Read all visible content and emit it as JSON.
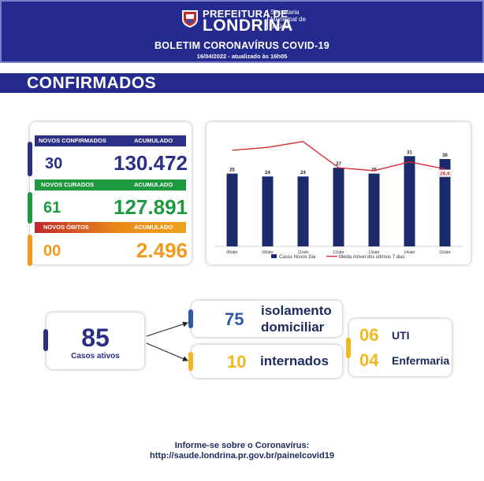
{
  "header": {
    "logo_line1": "PREFEITURA DE",
    "logo_line2": "LONDRINA",
    "logo_secretaria": "Secretaria Municipal de Saúde",
    "bulletin_title": "BOLETIM CORONAVÍRUS COVID-19",
    "bulletin_date": "16/04/2022 - atualizado às 16h05"
  },
  "section": {
    "title": "CONFIRMADOS"
  },
  "stats": {
    "confirmados": {
      "label": "NOVOS CONFIRMADOS",
      "acc_label": "ACUMULADO",
      "new": "30",
      "total": "130.472",
      "color": "#2b2f85",
      "value_color": "#2b2f85"
    },
    "curados": {
      "label": "NOVOS CURADOS",
      "acc_label": "ACUMULADO",
      "new": "61",
      "total": "127.891",
      "color": "#1d9a3f",
      "value_color": "#1d9a3f"
    },
    "obitos": {
      "label": "NOVOS ÓBITOS",
      "acc_label": "ACUMULADO",
      "new": "00",
      "total": "2.496",
      "color": "#e98a18",
      "value_color": "#f39a1e"
    }
  },
  "chart_data": {
    "type": "bar",
    "categories": [
      "08/abr",
      "09/abr",
      "11/abr",
      "12/abr",
      "13/abr",
      "14/abr",
      "16/abr"
    ],
    "series": [
      {
        "name": "Casos Novos Dia",
        "type": "bar",
        "values": [
          25,
          24,
          24,
          27,
          25,
          31,
          30
        ],
        "color": "#1b2a6b"
      },
      {
        "name": "Média móvel dos últimos 7 dias",
        "type": "line",
        "values": [
          33,
          34,
          36,
          27,
          26,
          29,
          26.6
        ],
        "color": "#d6242b"
      }
    ],
    "data_labels": [
      "25",
      "24",
      "24",
      "27",
      "25",
      "31",
      "30"
    ],
    "last_average_label": "26,6",
    "ylim": [
      0,
      40
    ],
    "grid": false,
    "legend": "bottom"
  },
  "active": {
    "count": "85",
    "label": "Casos ativos"
  },
  "isolamento": {
    "count": "75",
    "label_line1": "isolamento",
    "label_line2": "domiciliar"
  },
  "internados": {
    "count": "10",
    "label": "internados"
  },
  "hospital": {
    "uti_count": "06",
    "uti_label": "UTI",
    "enf_count": "04",
    "enf_label": "Enfermaria"
  },
  "colors": {
    "navy": "#2b2f85",
    "yellow": "#f2b71f",
    "blue_accent": "#2f58a8",
    "header_bg": "#252a8f"
  },
  "footer": {
    "line1": "Informe-se sobre o Coronavírus:",
    "line2": "http://saude.londrina.pr.gov.br/painelcovid19"
  }
}
